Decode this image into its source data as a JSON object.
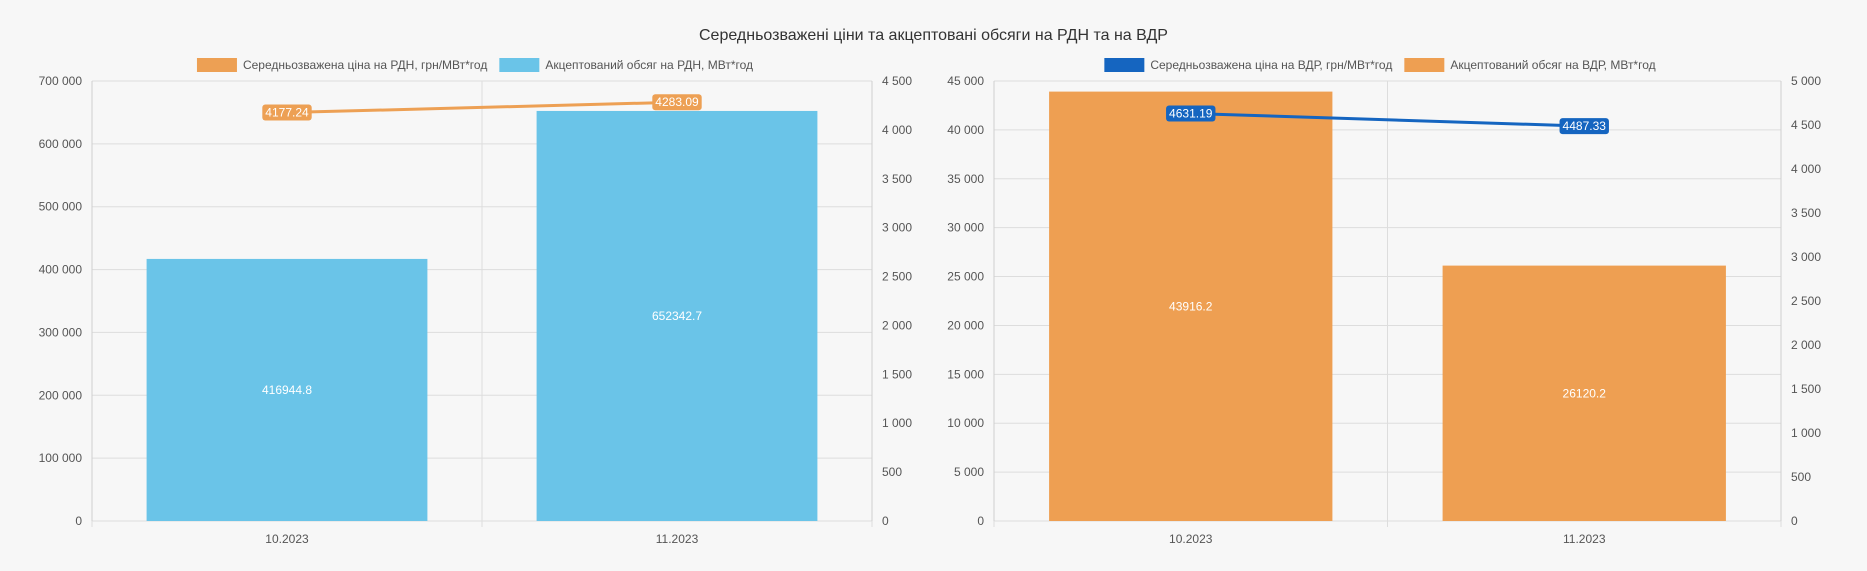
{
  "page": {
    "title": "Середньозважені ціни та акцептовані обсяги на РДН та на ВДР"
  },
  "chart_data": [
    {
      "type": "bar+line",
      "categories": [
        "10.2023",
        "11.2023"
      ],
      "bar_series": {
        "name": "Акцептований обсяг на РДН, МВт*год",
        "values": [
          416944.8,
          652342.7
        ],
        "value_labels": [
          "416944.8",
          "652342.7"
        ],
        "color": "#6ac4e8",
        "axis": "left"
      },
      "line_series": {
        "name": "Середньозважена ціна на РДН, грн/МВт*год",
        "values": [
          4177.24,
          4283.09
        ],
        "value_labels": [
          "4177.24",
          "4283.09"
        ],
        "color": "#eda054",
        "axis": "right"
      },
      "legend_order": [
        "line",
        "bar"
      ],
      "left_axis": {
        "ylim": [
          0,
          700000
        ],
        "ticks": [
          0,
          100000,
          200000,
          300000,
          400000,
          500000,
          600000,
          700000
        ],
        "tick_labels": [
          "0",
          "100 000",
          "200 000",
          "300 000",
          "400 000",
          "500 000",
          "600 000",
          "700 000"
        ]
      },
      "right_axis": {
        "ylim": [
          0,
          4500
        ],
        "ticks": [
          0,
          500,
          1000,
          1500,
          2000,
          2500,
          3000,
          3500,
          4000,
          4500
        ],
        "tick_labels": [
          "0",
          "500",
          "1 000",
          "1 500",
          "2 000",
          "2 500",
          "3 000",
          "3 500",
          "4 000",
          "4 500"
        ]
      },
      "grid": true,
      "legend_position": "top-center"
    },
    {
      "type": "bar+line",
      "categories": [
        "10.2023",
        "11.2023"
      ],
      "bar_series": {
        "name": "Акцептований обсяг на ВДР, МВт*год",
        "values": [
          43916.2,
          26120.2
        ],
        "value_labels": [
          "43916.2",
          "26120.2"
        ],
        "color": "#ee9f52",
        "axis": "left"
      },
      "line_series": {
        "name": "Середньозважена ціна на ВДР, грн/МВт*год",
        "values": [
          4631.19,
          4487.33
        ],
        "value_labels": [
          "4631.19",
          "4487.33"
        ],
        "color": "#1565c0",
        "axis": "right"
      },
      "legend_order": [
        "line",
        "bar"
      ],
      "left_axis": {
        "ylim": [
          0,
          45000
        ],
        "ticks": [
          0,
          5000,
          10000,
          15000,
          20000,
          25000,
          30000,
          35000,
          40000,
          45000
        ],
        "tick_labels": [
          "0",
          "5 000",
          "10 000",
          "15 000",
          "20 000",
          "25 000",
          "30 000",
          "35 000",
          "40 000",
          "45 000"
        ]
      },
      "right_axis": {
        "ylim": [
          0,
          5000
        ],
        "ticks": [
          0,
          500,
          1000,
          1500,
          2000,
          2500,
          3000,
          3500,
          4000,
          4500,
          5000
        ],
        "tick_labels": [
          "0",
          "500",
          "1 000",
          "1 500",
          "2 000",
          "2 500",
          "3 000",
          "3 500",
          "4 000",
          "4 500",
          "5 000"
        ]
      },
      "grid": true,
      "legend_position": "top-center"
    }
  ]
}
